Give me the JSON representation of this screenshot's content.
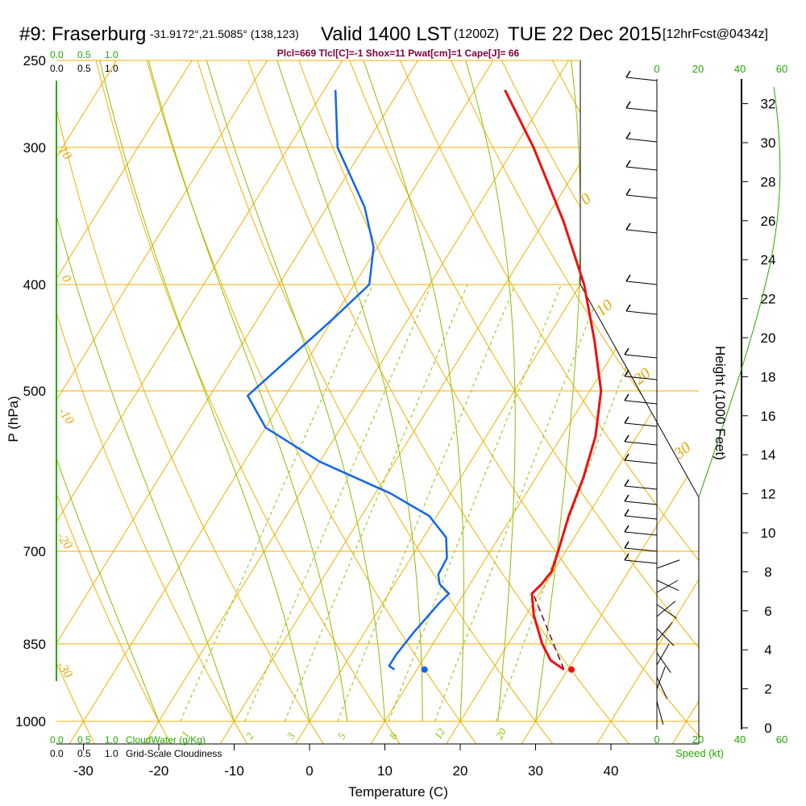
{
  "header": {
    "station": "#9: Fraserburg",
    "coords": "-31.9172°,21.5085° (138,123)",
    "valid_prefix": "Valid 1400 LST",
    "valid_utc": "(1200Z)",
    "valid_date": "TUE 22 Dec 2015",
    "fcst": "[12hrFcst@0434z]"
  },
  "indices_line": "Plcl=669 Tlcl[C]=-1 Shox=11 Pwat[cm]=1 Cape[J]= 66",
  "cloudwater": {
    "ticks": [
      "0.0",
      "0.5",
      "1.0"
    ],
    "label": "CloudWater (g/Kg)"
  },
  "cloudiness": {
    "ticks": [
      "0.0",
      "0.5",
      "1.0"
    ],
    "label": "Grid-Scale Cloudiness"
  },
  "speed_axis": {
    "ticks": [
      "0",
      "20",
      "40",
      "60"
    ],
    "label": "Speed (kt)"
  },
  "height_axis": {
    "label": "Height (1000 Feet)",
    "ticks": [
      "0",
      "2",
      "4",
      "6",
      "8",
      "10",
      "12",
      "14",
      "16",
      "18",
      "20",
      "22",
      "24",
      "26",
      "28",
      "30",
      "32"
    ]
  },
  "colors": {
    "temperature": "#ee1111",
    "dewpoint": "#1166ee",
    "isotherm": "#f0b000",
    "mixing_ratio": "#88c000",
    "parcel": "#660033",
    "height_curve": "#22aa00"
  },
  "chart_data": {
    "type": "line",
    "title": "",
    "xlabel": "Temperature (C)",
    "ylabel": "P (hPa)",
    "x_ticks": [
      -30,
      -20,
      -10,
      0,
      10,
      20,
      30,
      40
    ],
    "xlim": [
      -35,
      45
    ],
    "p_ticks": [
      250,
      300,
      400,
      500,
      700,
      850,
      1000
    ],
    "plim": [
      250,
      1000
    ],
    "y_scale": "log",
    "grid": true,
    "temperature_profile": [
      {
        "p": 897,
        "t": 29.5
      },
      {
        "p": 880,
        "t": 27.0
      },
      {
        "p": 850,
        "t": 24.5
      },
      {
        "p": 800,
        "t": 21.0
      },
      {
        "p": 765,
        "t": 19.0
      },
      {
        "p": 750,
        "t": 19.5
      },
      {
        "p": 730,
        "t": 19.8
      },
      {
        "p": 700,
        "t": 19.0
      },
      {
        "p": 650,
        "t": 17.5
      },
      {
        "p": 600,
        "t": 16.3
      },
      {
        "p": 550,
        "t": 14.5
      },
      {
        "p": 500,
        "t": 11.5
      },
      {
        "p": 450,
        "t": 6.5
      },
      {
        "p": 400,
        "t": 0.5
      },
      {
        "p": 350,
        "t": -7.5
      },
      {
        "p": 300,
        "t": -17.5
      },
      {
        "p": 266,
        "t": -26.0
      }
    ],
    "dewpoint_profile": [
      {
        "p": 897,
        "t": 7.0
      },
      {
        "p": 890,
        "t": 6.0
      },
      {
        "p": 870,
        "t": 6.0
      },
      {
        "p": 830,
        "t": 6.5
      },
      {
        "p": 780,
        "t": 7.5
      },
      {
        "p": 765,
        "t": 8.0
      },
      {
        "p": 750,
        "t": 6.0
      },
      {
        "p": 735,
        "t": 5.0
      },
      {
        "p": 710,
        "t": 4.8
      },
      {
        "p": 680,
        "t": 3.0
      },
      {
        "p": 650,
        "t": -1.0
      },
      {
        "p": 620,
        "t": -8.0
      },
      {
        "p": 580,
        "t": -20.0
      },
      {
        "p": 540,
        "t": -30.0
      },
      {
        "p": 505,
        "t": -35.0
      },
      {
        "p": 430,
        "t": -30.0
      },
      {
        "p": 400,
        "t": -28.0
      },
      {
        "p": 370,
        "t": -30.5
      },
      {
        "p": 340,
        "t": -35.0
      },
      {
        "p": 300,
        "t": -43.5
      },
      {
        "p": 266,
        "t": -48.5
      }
    ],
    "parcel_path": [
      {
        "p": 897,
        "t": 29.5
      },
      {
        "p": 769,
        "t": 19.5
      }
    ],
    "surface_temp_marker": {
      "p": 897,
      "t": 30.5
    },
    "surface_dewpoint_marker": {
      "p": 897,
      "t": 11.0
    },
    "isotherm_labels": [
      "10",
      "0",
      "-10",
      "-20",
      "-30",
      "0",
      "10",
      "20",
      "30"
    ],
    "mixing_ratio_labels": [
      "1",
      "2",
      "3",
      "5",
      "8",
      "12",
      "20"
    ]
  }
}
